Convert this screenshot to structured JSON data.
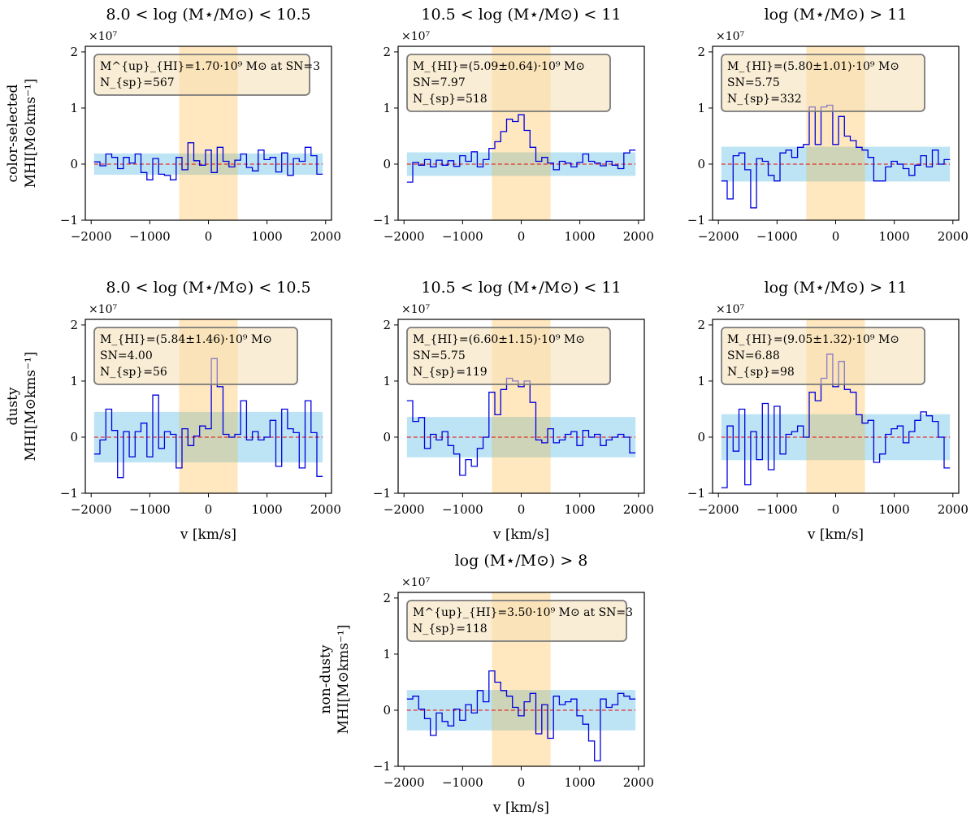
{
  "chart_data": [
    {
      "type": "step",
      "title": "8.0 < log (M⋆/M⊙) < 10.5",
      "row_label": [
        "color-selected",
        "MHI[M⊙kms⁻¹]"
      ],
      "xlabel": "",
      "ylabel_multiplier": "×10⁷",
      "xlim": [
        -2100,
        2100
      ],
      "ylim": [
        -1,
        2.1
      ],
      "xticks": [
        -2000,
        -1000,
        0,
        1000,
        2000
      ],
      "xtick_labels": [
        "−2000",
        "−1000",
        "0",
        "1000",
        "2000"
      ],
      "yticks": [
        -1,
        0,
        1,
        2
      ],
      "ytick_labels": [
        "−1",
        "0",
        "1",
        "2"
      ],
      "noise_band": 0.19,
      "signal_window": [
        -500,
        500
      ],
      "annotation": [
        "M^{up}_{HI}=1.70·10⁹ M⊙ at SN=3",
        "N_{sp}=567"
      ],
      "x": [
        -1900,
        -1800,
        -1700,
        -1600,
        -1500,
        -1400,
        -1300,
        -1200,
        -1100,
        -1000,
        -900,
        -800,
        -700,
        -600,
        -500,
        -400,
        -300,
        -200,
        -100,
        0,
        100,
        200,
        300,
        400,
        500,
        600,
        700,
        800,
        900,
        1000,
        1100,
        1200,
        1300,
        1400,
        1500,
        1600,
        1700,
        1800,
        1900
      ],
      "y": [
        0.04,
        -0.03,
        0.18,
        0.12,
        -0.08,
        0.12,
        0.02,
        0.18,
        -0.15,
        -0.28,
        0.1,
        -0.18,
        -0.2,
        -0.28,
        0.12,
        -0.1,
        0.38,
        0.06,
        -0.02,
        0.25,
        -0.15,
        0.3,
        0.05,
        -0.05,
        0.07,
        0.18,
        -0.06,
        -0.12,
        0.25,
        0.08,
        0.12,
        -0.14,
        0.2,
        -0.2,
        0.1,
        0.05,
        0.3,
        0.15,
        -0.18
      ]
    },
    {
      "type": "step",
      "title": "10.5 < log (M⋆/M⊙) < 11",
      "row_label": [],
      "xlabel": "",
      "ylabel_multiplier": "×10⁷",
      "xlim": [
        -2100,
        2100
      ],
      "ylim": [
        -1,
        2.1
      ],
      "xticks": [
        -2000,
        -1000,
        0,
        1000,
        2000
      ],
      "xtick_labels": [
        "−2000",
        "−1000",
        "0",
        "1000",
        "2000"
      ],
      "yticks": [
        -1,
        0,
        1,
        2
      ],
      "ytick_labels": [
        "−1",
        "0",
        "1",
        "2"
      ],
      "noise_band": 0.21,
      "signal_window": [
        -500,
        500
      ],
      "annotation": [
        "M_{HI}=(5.09±0.64)·10⁹ M⊙",
        "SN=7.97",
        "N_{sp}=518"
      ],
      "x": [
        -1900,
        -1800,
        -1700,
        -1600,
        -1500,
        -1400,
        -1300,
        -1200,
        -1100,
        -1000,
        -900,
        -800,
        -700,
        -600,
        -500,
        -400,
        -300,
        -200,
        -100,
        0,
        100,
        200,
        300,
        400,
        500,
        600,
        700,
        800,
        900,
        1000,
        1100,
        1200,
        1300,
        1400,
        1500,
        1600,
        1700,
        1800,
        1900
      ],
      "y": [
        -0.32,
        0.03,
        -0.02,
        0.08,
        -0.05,
        0.07,
        -0.02,
        0.06,
        -0.04,
        0.15,
        0.05,
        0.22,
        -0.05,
        0.08,
        0.28,
        0.4,
        0.58,
        0.8,
        0.76,
        0.88,
        0.6,
        0.3,
        0.05,
        0.12,
        0.02,
        -0.1,
        0.05,
        0.02,
        -0.05,
        0.03,
        0.18,
        0.05,
        0.02,
        -0.03,
        0.05,
        -0.02,
        -0.08,
        0.2,
        0.25
      ]
    },
    {
      "type": "step",
      "title": "log (M⋆/M⊙) > 11",
      "row_label": [],
      "xlabel": "",
      "ylabel_multiplier": "×10⁷",
      "xlim": [
        -2100,
        2100
      ],
      "ylim": [
        -1,
        2.1
      ],
      "xticks": [
        -2000,
        -1000,
        0,
        1000,
        2000
      ],
      "xtick_labels": [
        "−2000",
        "−1000",
        "0",
        "1000",
        "2000"
      ],
      "yticks": [
        -1,
        0,
        1,
        2
      ],
      "ytick_labels": [
        "−1",
        "0",
        "1",
        "2"
      ],
      "noise_band": 0.31,
      "signal_window": [
        -500,
        500
      ],
      "annotation": [
        "M_{HI}=(5.80±1.01)·10⁹ M⊙",
        "SN=5.75",
        "N_{sp}=332"
      ],
      "x": [
        -1900,
        -1800,
        -1700,
        -1600,
        -1500,
        -1400,
        -1300,
        -1200,
        -1100,
        -1000,
        -900,
        -800,
        -700,
        -600,
        -500,
        -400,
        -300,
        -200,
        -100,
        0,
        100,
        200,
        300,
        400,
        500,
        600,
        700,
        800,
        900,
        1000,
        1100,
        1200,
        1300,
        1400,
        1500,
        1600,
        1700,
        1800,
        1900
      ],
      "y": [
        -0.3,
        -0.62,
        0.15,
        0.2,
        -0.1,
        -0.78,
        0.1,
        0.05,
        -0.2,
        -0.3,
        0.2,
        0.25,
        0.12,
        0.3,
        0.35,
        1.02,
        0.35,
        1.02,
        1.05,
        0.35,
        0.85,
        0.5,
        0.42,
        0.3,
        0.25,
        0.12,
        -0.3,
        -0.3,
        -0.05,
        0.05,
        0.0,
        -0.08,
        -0.2,
        -0.02,
        0.15,
        -0.05,
        0.25,
        0.0,
        0.08
      ]
    },
    {
      "type": "step",
      "title": "8.0 < log (M⋆/M⊙) < 10.5",
      "row_label": [
        "dusty",
        "MHI[M⊙kms⁻¹]"
      ],
      "xlabel": "v [km/s]",
      "ylabel_multiplier": "×10⁷",
      "xlim": [
        -2100,
        2100
      ],
      "ylim": [
        -1,
        2.1
      ],
      "xticks": [
        -2000,
        -1000,
        0,
        1000,
        2000
      ],
      "xtick_labels": [
        "−2000",
        "−1000",
        "0",
        "1000",
        "2000"
      ],
      "yticks": [
        -1,
        0,
        1,
        2
      ],
      "ytick_labels": [
        "−1",
        "0",
        "1",
        "2"
      ],
      "noise_band": 0.45,
      "signal_window": [
        -500,
        500
      ],
      "annotation": [
        "M_{HI}=(5.84±1.46)·10⁹ M⊙",
        "SN=4.00",
        "N_{sp}=56"
      ],
      "x": [
        -1900,
        -1800,
        -1700,
        -1600,
        -1500,
        -1400,
        -1300,
        -1200,
        -1100,
        -1000,
        -900,
        -800,
        -700,
        -600,
        -500,
        -400,
        -300,
        -200,
        -100,
        0,
        100,
        200,
        300,
        400,
        500,
        600,
        700,
        800,
        900,
        1000,
        1100,
        1200,
        1300,
        1400,
        1500,
        1600,
        1700,
        1800,
        1900
      ],
      "y": [
        -0.3,
        -0.05,
        0.5,
        0.12,
        -0.72,
        0.1,
        -0.35,
        0.1,
        0.25,
        -0.35,
        0.75,
        -0.2,
        0.1,
        0.05,
        -0.55,
        0.15,
        -0.15,
        0.02,
        0.2,
        0.15,
        1.4,
        0.9,
        0.05,
        0.0,
        0.05,
        0.65,
        -0.05,
        0.1,
        -0.05,
        0.0,
        0.3,
        -0.52,
        0.5,
        0.15,
        0.08,
        -0.55,
        0.65,
        0.08,
        -0.7
      ]
    },
    {
      "type": "step",
      "title": "10.5 < log (M⋆/M⊙) < 11",
      "row_label": [],
      "xlabel": "v [km/s]",
      "ylabel_multiplier": "×10⁷",
      "xlim": [
        -2100,
        2100
      ],
      "ylim": [
        -1,
        2.1
      ],
      "xticks": [
        -2000,
        -1000,
        0,
        1000,
        2000
      ],
      "xtick_labels": [
        "−2000",
        "−1000",
        "0",
        "1000",
        "2000"
      ],
      "yticks": [
        -1,
        0,
        1,
        2
      ],
      "ytick_labels": [
        "−1",
        "0",
        "1",
        "2"
      ],
      "noise_band": 0.36,
      "signal_window": [
        -500,
        500
      ],
      "annotation": [
        "M_{HI}=(6.60±1.15)·10⁹ M⊙",
        "SN=5.75",
        "N_{sp}=119"
      ],
      "x": [
        -1900,
        -1800,
        -1700,
        -1600,
        -1500,
        -1400,
        -1300,
        -1200,
        -1100,
        -1000,
        -900,
        -800,
        -700,
        -600,
        -500,
        -400,
        -300,
        -200,
        -100,
        0,
        100,
        200,
        300,
        400,
        500,
        600,
        700,
        800,
        900,
        1000,
        1100,
        1200,
        1300,
        1400,
        1500,
        1600,
        1700,
        1800,
        1900
      ],
      "y": [
        0.65,
        0.28,
        0.35,
        -0.2,
        0.05,
        -0.05,
        0.1,
        -0.15,
        -0.3,
        -0.68,
        -0.4,
        -0.52,
        -0.2,
        0.0,
        0.8,
        0.4,
        0.85,
        1.05,
        1.0,
        0.9,
        1.0,
        0.62,
        -0.05,
        -0.1,
        0.15,
        -0.1,
        -0.05,
        0.05,
        0.1,
        -0.15,
        0.12,
        0.0,
        0.05,
        -0.15,
        -0.05,
        0.0,
        0.05,
        0.0,
        -0.28
      ]
    },
    {
      "type": "step",
      "title": "log (M⋆/M⊙) > 11",
      "row_label": [],
      "xlabel": "v [km/s]",
      "ylabel_multiplier": "×10⁷",
      "xlim": [
        -2100,
        2100
      ],
      "ylim": [
        -1,
        2.1
      ],
      "xticks": [
        -2000,
        -1000,
        0,
        1000,
        2000
      ],
      "xtick_labels": [
        "−2000",
        "−1000",
        "0",
        "1000",
        "2000"
      ],
      "yticks": [
        -1,
        0,
        1,
        2
      ],
      "ytick_labels": [
        "−1",
        "0",
        "1",
        "2"
      ],
      "noise_band": 0.41,
      "signal_window": [
        -500,
        500
      ],
      "annotation": [
        "M_{HI}=(9.05±1.32)·10⁹ M⊙",
        "SN=6.88",
        "N_{sp}=98"
      ],
      "x": [
        -1900,
        -1800,
        -1700,
        -1600,
        -1500,
        -1400,
        -1300,
        -1200,
        -1100,
        -1000,
        -900,
        -800,
        -700,
        -600,
        -500,
        -400,
        -300,
        -200,
        -100,
        0,
        100,
        200,
        300,
        400,
        500,
        600,
        700,
        800,
        900,
        1000,
        1100,
        1200,
        1300,
        1400,
        1500,
        1600,
        1700,
        1800,
        1900
      ],
      "y": [
        -0.9,
        0.2,
        -0.25,
        0.5,
        -0.85,
        0.1,
        -0.4,
        0.6,
        -0.58,
        0.55,
        -0.3,
        0.05,
        0.1,
        0.2,
        0.0,
        0.8,
        0.65,
        1.05,
        1.48,
        0.9,
        1.35,
        0.85,
        0.8,
        0.4,
        0.25,
        0.3,
        -0.45,
        -0.3,
        0.05,
        0.15,
        0.2,
        -0.1,
        0.1,
        0.3,
        0.45,
        0.38,
        0.28,
        0.0,
        -0.55
      ]
    },
    {
      "type": "step",
      "title": "log (M⋆/M⊙) > 8",
      "row_label": [
        "non-dusty",
        "MHI[M⊙kms⁻¹]"
      ],
      "xlabel": "v [km/s]",
      "ylabel_multiplier": "×10⁷",
      "xlim": [
        -2100,
        2100
      ],
      "ylim": [
        -1,
        2.1
      ],
      "xticks": [
        -2000,
        -1000,
        0,
        1000,
        2000
      ],
      "xtick_labels": [
        "−2000",
        "−1000",
        "0",
        "1000",
        "2000"
      ],
      "yticks": [
        -1,
        0,
        1,
        2
      ],
      "ytick_labels": [
        "−1",
        "0",
        "1",
        "2"
      ],
      "noise_band": 0.36,
      "signal_window": [
        -500,
        500
      ],
      "annotation": [
        "M^{up}_{HI}=3.50·10⁹ M⊙ at SN=3",
        "N_{sp}=118"
      ],
      "x": [
        -1900,
        -1800,
        -1700,
        -1600,
        -1500,
        -1400,
        -1300,
        -1200,
        -1100,
        -1000,
        -900,
        -800,
        -700,
        -600,
        -500,
        -400,
        -300,
        -200,
        -100,
        0,
        100,
        200,
        300,
        400,
        500,
        600,
        700,
        800,
        900,
        1000,
        1100,
        1200,
        1300,
        1400,
        1500,
        1600,
        1700,
        1800,
        1900
      ],
      "y": [
        0.2,
        0.25,
        0.02,
        -0.15,
        -0.45,
        -0.05,
        -0.2,
        -0.28,
        0.02,
        -0.18,
        0.1,
        -0.05,
        0.35,
        0.15,
        0.7,
        0.5,
        0.35,
        0.25,
        0.05,
        -0.1,
        0.15,
        0.3,
        -0.42,
        0.1,
        -0.5,
        0.25,
        0.1,
        0.15,
        0.2,
        -0.1,
        -0.25,
        -0.55,
        -0.9,
        0.2,
        0.05,
        0.1,
        0.3,
        0.25,
        0.2
      ]
    }
  ]
}
